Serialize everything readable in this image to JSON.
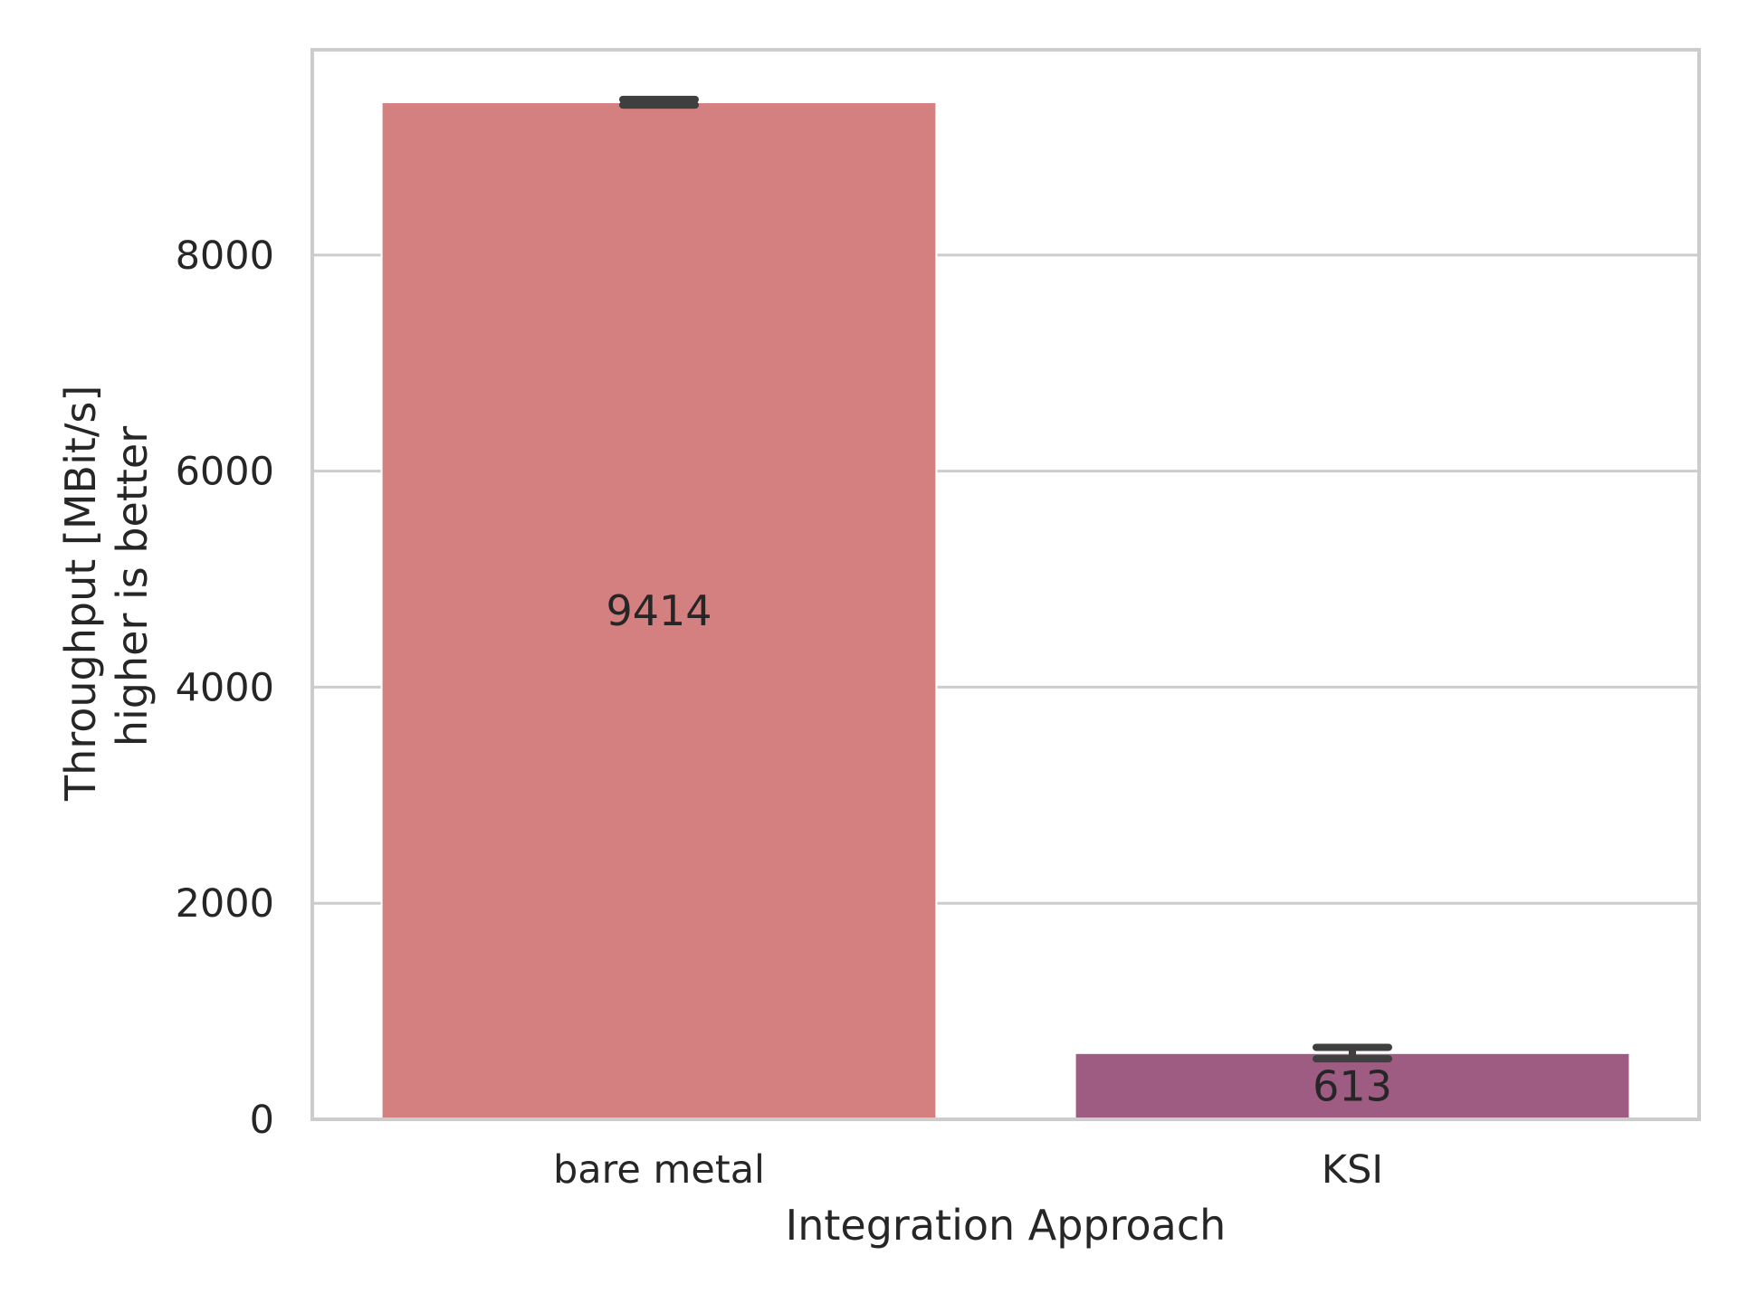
{
  "chart_data": {
    "type": "bar",
    "categories": [
      "bare metal",
      "KSI"
    ],
    "values": [
      9414,
      613
    ],
    "error_bars": [
      {
        "low": 9388,
        "high": 9440
      },
      {
        "low": 560,
        "high": 666
      }
    ],
    "data_labels": [
      "9414",
      "613"
    ],
    "xlabel": "Integration Approach",
    "ylabel": [
      "Throughput  [MBit/s]",
      "higher is better"
    ],
    "ylim": [
      0,
      9900
    ],
    "yticks": [
      0,
      2000,
      4000,
      6000,
      8000
    ],
    "ytick_labels": [
      "0",
      "2000",
      "4000",
      "6000",
      "8000"
    ],
    "grid": "horizontal",
    "bar_colors": [
      "#d47f80",
      "#9e5c82"
    ],
    "error_bar_color": "#3f3f3f",
    "grid_color": "#cccccc",
    "frame_color": "#cccccc"
  }
}
